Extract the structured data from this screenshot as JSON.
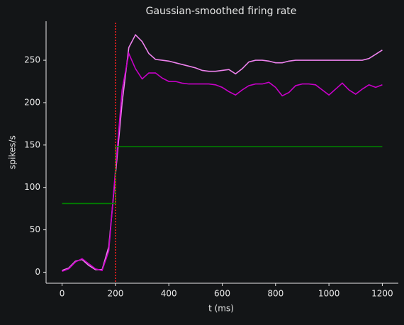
{
  "chart_data": {
    "type": "line",
    "title": "Gaussian-smoothed firing rate",
    "xlabel": "t (ms)",
    "ylabel": "spikes/s",
    "xlim": [
      -60,
      1260
    ],
    "ylim": [
      -13,
      296
    ],
    "xticks": [
      0,
      200,
      400,
      600,
      800,
      1000,
      1200
    ],
    "yticks": [
      0,
      50,
      100,
      150,
      200,
      250
    ],
    "vline": {
      "x": 200,
      "color": "#ff2020"
    },
    "series": [
      {
        "color": "#ee82ee",
        "x": [
          0,
          25,
          50,
          75,
          100,
          125,
          150,
          175,
          200,
          225,
          250,
          275,
          300,
          325,
          350,
          375,
          400,
          425,
          450,
          475,
          500,
          525,
          550,
          575,
          600,
          625,
          650,
          675,
          700,
          725,
          750,
          775,
          800,
          825,
          850,
          875,
          900,
          925,
          950,
          975,
          1000,
          1025,
          1050,
          1075,
          1100,
          1125,
          1150,
          1175,
          1200
        ],
        "values": [
          2,
          5,
          13,
          15,
          8,
          3,
          3,
          30,
          115,
          200,
          265,
          280,
          272,
          258,
          251,
          250,
          249,
          247,
          245,
          243,
          241,
          238,
          237,
          237,
          238,
          239,
          234,
          240,
          248,
          250,
          250,
          249,
          247,
          247,
          249,
          250,
          250,
          250,
          250,
          250,
          250,
          250,
          250,
          250,
          250,
          250,
          252,
          257,
          262
        ]
      },
      {
        "color": "#c800c8",
        "x": [
          0,
          25,
          50,
          75,
          100,
          125,
          150,
          175,
          200,
          225,
          250,
          275,
          300,
          325,
          350,
          375,
          400,
          425,
          450,
          475,
          500,
          525,
          550,
          575,
          600,
          625,
          650,
          675,
          700,
          725,
          750,
          775,
          800,
          825,
          850,
          875,
          900,
          925,
          950,
          975,
          1000,
          1025,
          1050,
          1075,
          1100,
          1125,
          1150,
          1175,
          1200
        ],
        "values": [
          1,
          4,
          12,
          16,
          10,
          4,
          2,
          25,
          120,
          215,
          258,
          240,
          228,
          235,
          235,
          229,
          225,
          225,
          223,
          222,
          222,
          222,
          222,
          221,
          218,
          213,
          209,
          215,
          220,
          222,
          222,
          224,
          218,
          208,
          212,
          220,
          222,
          222,
          221,
          215,
          209,
          216,
          223,
          215,
          210,
          216,
          221,
          218,
          221
        ]
      },
      {
        "color": "#008000",
        "x": [
          0,
          200,
          200,
          1200
        ],
        "values": [
          81,
          81,
          148,
          148
        ]
      }
    ]
  }
}
